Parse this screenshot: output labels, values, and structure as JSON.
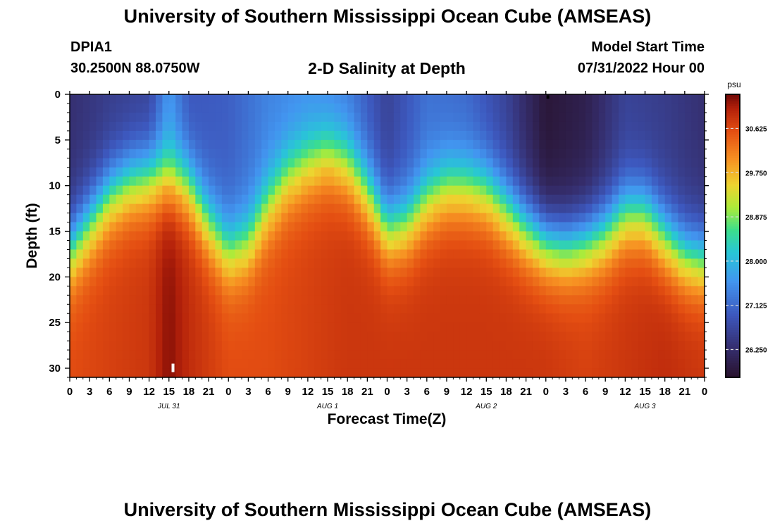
{
  "page": {
    "title": "University of Southern Mississippi Ocean Cube (AMSEAS)",
    "station_id": "DPIA1",
    "coordinates": "30.2500N  88.0750W",
    "subtitle": "2-D Salinity at Depth",
    "model_start_label": "Model Start Time",
    "model_start_value": "07/31/2022 Hour 00",
    "bottom_title": "University of Southern Mississippi Ocean Cube (AMSEAS)"
  },
  "chart_data": {
    "type": "heatmap",
    "title": "2-D Salinity at Depth",
    "xlabel": "Forecast Time(Z)",
    "ylabel": "Depth (ft)",
    "x_tick_labels": [
      "0",
      "3",
      "6",
      "9",
      "12",
      "15",
      "18",
      "21",
      "0",
      "3",
      "6",
      "9",
      "12",
      "15",
      "18",
      "21",
      "0",
      "3",
      "6",
      "9",
      "12",
      "15",
      "18",
      "21",
      "0",
      "3",
      "6",
      "9",
      "12",
      "15",
      "18",
      "21",
      "0"
    ],
    "date_labels": [
      {
        "label": "JUL 31",
        "hour": 15
      },
      {
        "label": "AUG 1",
        "hour": 39
      },
      {
        "label": "AUG 2",
        "hour": 63
      },
      {
        "label": "AUG 3",
        "hour": 87
      }
    ],
    "x_range_hours": [
      0,
      96
    ],
    "y_ticks": [
      "0",
      "5",
      "10",
      "15",
      "20",
      "25",
      "30"
    ],
    "y_range_ft": [
      0,
      31
    ],
    "colorbar": {
      "unit": "psu",
      "ticks": [
        "30.625",
        "29.750",
        "28.875",
        "28.000",
        "27.125",
        "26.250"
      ],
      "tick_values": [
        30.625,
        29.75,
        28.875,
        28.0,
        27.125,
        26.25
      ],
      "range": [
        25.7,
        31.3
      ]
    },
    "halocline_depth_ft": {
      "hours": [
        0,
        3,
        6,
        9,
        12,
        15,
        18,
        21,
        24,
        27,
        30,
        33,
        36,
        39,
        42,
        45,
        48,
        51,
        54,
        57,
        60,
        63,
        66,
        69,
        72,
        75,
        78,
        81,
        84,
        87,
        90,
        93,
        96
      ],
      "depths": [
        17,
        14,
        11,
        9.5,
        9,
        9,
        10,
        14,
        17,
        16,
        12,
        9,
        7.5,
        6.5,
        7.5,
        10.5,
        14.5,
        14,
        11.5,
        10,
        10,
        10.5,
        12.5,
        14.5,
        16,
        16.5,
        16,
        15,
        13,
        13,
        15.5,
        17.5,
        18
      ]
    },
    "surface_salinity_psu": {
      "hours": [
        0,
        6,
        12,
        15,
        18,
        24,
        30,
        36,
        42,
        48,
        54,
        60,
        66,
        72,
        78,
        84,
        90,
        96
      ],
      "values": [
        26.3,
        26.5,
        26.6,
        27.6,
        26.9,
        27.0,
        27.4,
        27.5,
        27.3,
        26.6,
        27.2,
        27.1,
        26.6,
        25.8,
        26.0,
        26.6,
        26.5,
        26.3
      ]
    },
    "bottom_salinity_psu": {
      "hours": [
        0,
        6,
        12,
        15,
        18,
        24,
        30,
        36,
        42,
        48,
        54,
        60,
        66,
        72,
        78,
        84,
        90,
        96
      ],
      "values": [
        30.6,
        30.7,
        30.8,
        31.2,
        30.9,
        30.6,
        30.6,
        30.7,
        30.8,
        30.8,
        30.8,
        30.8,
        30.8,
        30.8,
        30.7,
        30.8,
        30.9,
        30.8
      ]
    }
  }
}
